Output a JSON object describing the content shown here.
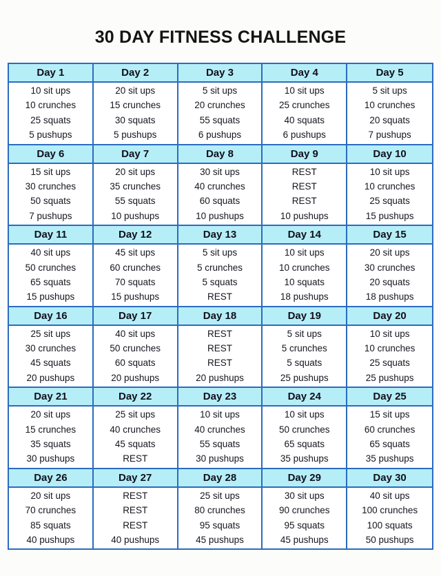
{
  "page_title": "30 DAY FITNESS CHALLENGE",
  "colors": {
    "page_background": "#fcfcfa",
    "table_border": "#2a6bc0",
    "header_background": "#b5eef7",
    "cell_background": "#ffffff",
    "text": "#15151f"
  },
  "days": [
    {
      "label": "Day 1",
      "items": [
        "10 sit ups",
        "10 crunches",
        "25 squats",
        "5 pushups"
      ]
    },
    {
      "label": "Day 2",
      "items": [
        "20 sit ups",
        "15 crunches",
        "30 squats",
        "5 pushups"
      ]
    },
    {
      "label": "Day 3",
      "items": [
        "5 sit ups",
        "20 crunches",
        "55 squats",
        "6 pushups"
      ]
    },
    {
      "label": "Day 4",
      "items": [
        "10 sit ups",
        "25 crunches",
        "40 squats",
        "6 pushups"
      ]
    },
    {
      "label": "Day 5",
      "items": [
        "5 sit ups",
        "10 crunches",
        "20 squats",
        "7 pushups"
      ]
    },
    {
      "label": "Day 6",
      "items": [
        "15 sit ups",
        "30 crunches",
        "50 squats",
        "7 pushups"
      ]
    },
    {
      "label": "Day 7",
      "items": [
        "20 sit ups",
        "35 crunches",
        "55 squats",
        "10 pushups"
      ]
    },
    {
      "label": "Day 8",
      "items": [
        "30 sit ups",
        "40 crunches",
        "60 squats",
        "10 pushups"
      ]
    },
    {
      "label": "Day 9",
      "items": [
        "REST",
        "REST",
        "REST",
        "10 pushups"
      ]
    },
    {
      "label": "Day 10",
      "items": [
        "10 sit ups",
        "10 crunches",
        "25 squats",
        "15 pushups"
      ]
    },
    {
      "label": "Day 11",
      "items": [
        "40 sit ups",
        "50 crunches",
        "65 squats",
        "15 pushups"
      ]
    },
    {
      "label": "Day 12",
      "items": [
        "45 sit ups",
        "60 crunches",
        "70 squats",
        "15 pushups"
      ]
    },
    {
      "label": "Day 13",
      "items": [
        "5 sit ups",
        "5 crunches",
        "5 squats",
        "REST"
      ]
    },
    {
      "label": "Day 14",
      "items": [
        "10 sit ups",
        "10 crunches",
        "10 squats",
        "18 pushups"
      ]
    },
    {
      "label": "Day 15",
      "items": [
        "20 sit ups",
        "30 crunches",
        "20 squats",
        "18 pushups"
      ]
    },
    {
      "label": "Day 16",
      "items": [
        "25 sit ups",
        "30 crunches",
        "45 squats",
        "20 pushups"
      ]
    },
    {
      "label": "Day 17",
      "items": [
        "40 sit ups",
        "50 crunches",
        "60 squats",
        "20 pushups"
      ]
    },
    {
      "label": "Day 18",
      "items": [
        "REST",
        "REST",
        "REST",
        "20 pushups"
      ]
    },
    {
      "label": "Day 19",
      "items": [
        "5 sit ups",
        "5 crunches",
        "5 squats",
        "25 pushups"
      ]
    },
    {
      "label": "Day 20",
      "items": [
        "10 sit ups",
        "10 crunches",
        "25 squats",
        "25 pushups"
      ]
    },
    {
      "label": "Day 21",
      "items": [
        "20 sit ups",
        "15 crunches",
        "35 squats",
        "30 pushups"
      ]
    },
    {
      "label": "Day 22",
      "items": [
        "25 sit ups",
        "40 crunches",
        "45 squats",
        "REST"
      ]
    },
    {
      "label": "Day 23",
      "items": [
        "10 sit ups",
        "40 crunches",
        "55 squats",
        "30 pushups"
      ]
    },
    {
      "label": "Day 24",
      "items": [
        "10 sit ups",
        "50 crunches",
        "65 squats",
        "35 pushups"
      ]
    },
    {
      "label": "Day 25",
      "items": [
        "15 sit ups",
        "60 crunches",
        "65 squats",
        "35 pushups"
      ]
    },
    {
      "label": "Day 26",
      "items": [
        "20 sit ups",
        "70 crunches",
        "85 squats",
        "40 pushups"
      ]
    },
    {
      "label": "Day 27",
      "items": [
        "REST",
        "REST",
        "REST",
        "40 pushups"
      ]
    },
    {
      "label": "Day 28",
      "items": [
        "25 sit ups",
        "80 crunches",
        "95 squats",
        "45 pushups"
      ]
    },
    {
      "label": "Day 29",
      "items": [
        "30 sit ups",
        "90 crunches",
        "95 squats",
        "45 pushups"
      ]
    },
    {
      "label": "Day 30",
      "items": [
        "40 sit ups",
        "100 crunches",
        "100 squats",
        "50 pushups"
      ]
    }
  ]
}
